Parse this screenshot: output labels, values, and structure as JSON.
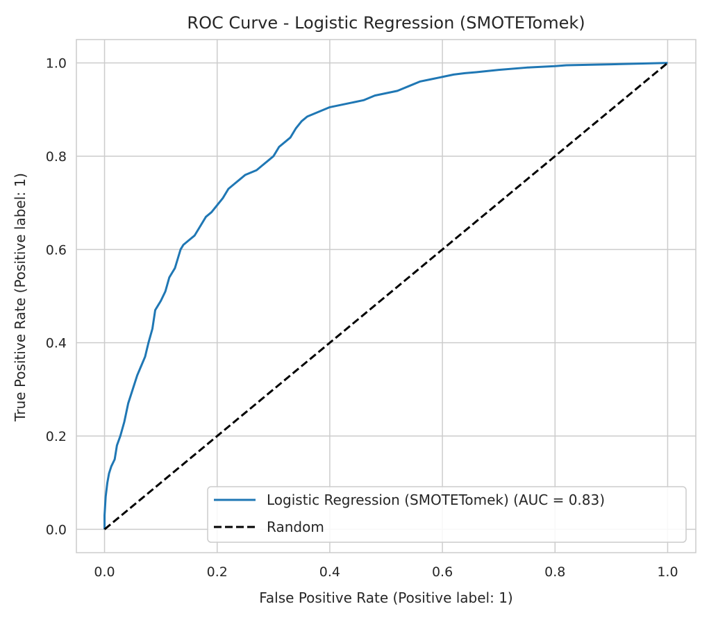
{
  "chart_data": {
    "type": "line",
    "title": "ROC Curve - Logistic Regression (SMOTETomek)",
    "xlabel": "False Positive Rate (Positive label: 1)",
    "ylabel": "True Positive Rate (Positive label: 1)",
    "xlim": [
      -0.05,
      1.05
    ],
    "ylim": [
      -0.05,
      1.05
    ],
    "xticks": [
      "0.0",
      "0.2",
      "0.4",
      "0.6",
      "0.8",
      "1.0"
    ],
    "yticks": [
      "0.0",
      "0.2",
      "0.4",
      "0.6",
      "0.8",
      "1.0"
    ],
    "grid": true,
    "legend_position": "lower-right",
    "series": [
      {
        "name": "Logistic Regression (SMOTETomek) (AUC = 0.83)",
        "color": "#1f77b4",
        "style": "solid",
        "x": [
          0.0,
          0.0,
          0.002,
          0.005,
          0.008,
          0.012,
          0.018,
          0.022,
          0.028,
          0.035,
          0.042,
          0.05,
          0.058,
          0.065,
          0.072,
          0.078,
          0.085,
          0.09,
          0.095,
          0.1,
          0.108,
          0.115,
          0.12,
          0.125,
          0.13,
          0.135,
          0.14,
          0.15,
          0.16,
          0.17,
          0.18,
          0.19,
          0.2,
          0.21,
          0.22,
          0.23,
          0.24,
          0.25,
          0.26,
          0.27,
          0.28,
          0.29,
          0.3,
          0.31,
          0.32,
          0.33,
          0.34,
          0.35,
          0.36,
          0.37,
          0.38,
          0.39,
          0.4,
          0.42,
          0.44,
          0.46,
          0.48,
          0.5,
          0.52,
          0.54,
          0.56,
          0.58,
          0.6,
          0.62,
          0.64,
          0.66,
          0.7,
          0.75,
          0.8,
          0.82,
          0.9,
          1.0
        ],
        "y": [
          0.0,
          0.03,
          0.07,
          0.1,
          0.12,
          0.135,
          0.15,
          0.18,
          0.2,
          0.23,
          0.27,
          0.3,
          0.33,
          0.35,
          0.37,
          0.4,
          0.43,
          0.47,
          0.48,
          0.49,
          0.51,
          0.54,
          0.55,
          0.56,
          0.58,
          0.6,
          0.61,
          0.62,
          0.63,
          0.65,
          0.67,
          0.68,
          0.695,
          0.71,
          0.73,
          0.74,
          0.75,
          0.76,
          0.765,
          0.77,
          0.78,
          0.79,
          0.8,
          0.82,
          0.83,
          0.84,
          0.86,
          0.875,
          0.885,
          0.89,
          0.895,
          0.9,
          0.905,
          0.91,
          0.915,
          0.92,
          0.93,
          0.935,
          0.94,
          0.95,
          0.96,
          0.965,
          0.97,
          0.975,
          0.978,
          0.98,
          0.985,
          0.99,
          0.993,
          0.995,
          0.997,
          1.0
        ]
      },
      {
        "name": "Random",
        "color": "#000000",
        "style": "dashed",
        "x": [
          0,
          1
        ],
        "y": [
          0,
          1
        ]
      }
    ]
  }
}
